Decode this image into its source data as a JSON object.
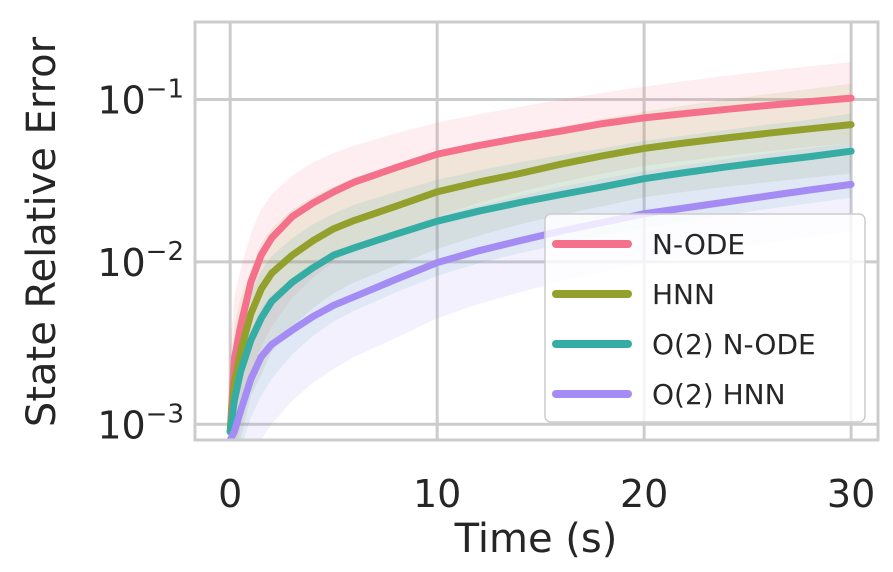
{
  "chart_data": {
    "type": "line",
    "title": "",
    "xlabel": "Time (s)",
    "ylabel": "State Relative Error",
    "xlim": [
      -1.7,
      31.3
    ],
    "ylim": [
      0.0008,
      0.3
    ],
    "yscale": "log",
    "grid": true,
    "legend_position": "lower-right",
    "x_ticks": [
      {
        "value": 0,
        "label": "0"
      },
      {
        "value": 10,
        "label": "10"
      },
      {
        "value": 20,
        "label": "20"
      },
      {
        "value": 30,
        "label": "30"
      }
    ],
    "y_ticks": [
      {
        "value": 0.001,
        "base": "10",
        "exp": "−3"
      },
      {
        "value": 0.01,
        "base": "10",
        "exp": "−2"
      },
      {
        "value": 0.1,
        "base": "10",
        "exp": "−1"
      }
    ],
    "x": [
      0,
      0.2,
      0.5,
      1,
      1.5,
      2,
      3,
      4,
      5,
      6,
      8,
      10,
      12,
      14,
      16,
      18,
      20,
      22,
      24,
      26,
      28,
      30
    ],
    "series": [
      {
        "name": "N-ODE",
        "color": "#f5708a",
        "values": [
          0.0009,
          0.0025,
          0.004,
          0.0075,
          0.011,
          0.014,
          0.019,
          0.023,
          0.027,
          0.031,
          0.038,
          0.046,
          0.052,
          0.058,
          0.064,
          0.071,
          0.077,
          0.082,
          0.087,
          0.092,
          0.097,
          0.102
        ],
        "lower": [
          0.0003,
          0.0005,
          0.001,
          0.002,
          0.003,
          0.004,
          0.006,
          0.008,
          0.01,
          0.012,
          0.015,
          0.019,
          0.023,
          0.027,
          0.031,
          0.035,
          0.039,
          0.042,
          0.045,
          0.048,
          0.051,
          0.054
        ],
        "upper": [
          0.003,
          0.006,
          0.009,
          0.015,
          0.021,
          0.026,
          0.034,
          0.041,
          0.047,
          0.052,
          0.062,
          0.072,
          0.081,
          0.09,
          0.1,
          0.11,
          0.12,
          0.13,
          0.14,
          0.15,
          0.16,
          0.17
        ]
      },
      {
        "name": "HNN",
        "color": "#93a02c",
        "values": [
          0.0009,
          0.0018,
          0.0028,
          0.0048,
          0.0068,
          0.0085,
          0.011,
          0.0135,
          0.016,
          0.018,
          0.022,
          0.027,
          0.031,
          0.035,
          0.04,
          0.045,
          0.05,
          0.054,
          0.058,
          0.062,
          0.066,
          0.07
        ],
        "lower": [
          0.0003,
          0.0005,
          0.0008,
          0.0015,
          0.002,
          0.0028,
          0.004,
          0.0052,
          0.0064,
          0.0075,
          0.0095,
          0.012,
          0.0145,
          0.017,
          0.0195,
          0.022,
          0.025,
          0.027,
          0.029,
          0.031,
          0.033,
          0.035
        ],
        "upper": [
          0.002,
          0.004,
          0.006,
          0.009,
          0.013,
          0.016,
          0.021,
          0.025,
          0.029,
          0.033,
          0.04,
          0.047,
          0.054,
          0.061,
          0.068,
          0.076,
          0.084,
          0.092,
          0.1,
          0.108,
          0.116,
          0.125
        ]
      },
      {
        "name": "O(2) N-ODE",
        "color": "#36ada4",
        "values": [
          0.0009,
          0.0014,
          0.0021,
          0.0033,
          0.0045,
          0.0057,
          0.0075,
          0.0092,
          0.011,
          0.0122,
          0.0148,
          0.0178,
          0.0205,
          0.0232,
          0.026,
          0.029,
          0.0325,
          0.0355,
          0.0385,
          0.0415,
          0.0445,
          0.048
        ],
        "lower": [
          0.0003,
          0.0005,
          0.0007,
          0.0011,
          0.0015,
          0.0019,
          0.0027,
          0.0035,
          0.0043,
          0.005,
          0.0065,
          0.0082,
          0.0098,
          0.0113,
          0.0129,
          0.0145,
          0.0162,
          0.0178,
          0.0195,
          0.0212,
          0.0229,
          0.0248
        ],
        "upper": [
          0.002,
          0.0032,
          0.0045,
          0.0065,
          0.0088,
          0.0108,
          0.014,
          0.017,
          0.0198,
          0.0225,
          0.027,
          0.032,
          0.0365,
          0.041,
          0.0455,
          0.05,
          0.0555,
          0.06,
          0.065,
          0.07,
          0.075,
          0.082
        ]
      },
      {
        "name": "O(2) HNN",
        "color": "#a48cf4",
        "values": [
          0.0008,
          0.0009,
          0.0012,
          0.0019,
          0.0026,
          0.0031,
          0.0038,
          0.0046,
          0.0054,
          0.0061,
          0.0078,
          0.0099,
          0.0117,
          0.0135,
          0.0155,
          0.0175,
          0.0198,
          0.0215,
          0.0234,
          0.0255,
          0.0277,
          0.03
        ],
        "lower": [
          0.0003,
          0.0003,
          0.0004,
          0.0006,
          0.0008,
          0.001,
          0.0014,
          0.0018,
          0.0022,
          0.0026,
          0.0034,
          0.0045,
          0.0055,
          0.0065,
          0.0076,
          0.0087,
          0.0098,
          0.0109,
          0.012,
          0.0131,
          0.0142,
          0.0154
        ],
        "upper": [
          0.0012,
          0.0018,
          0.0025,
          0.0038,
          0.0052,
          0.0063,
          0.0078,
          0.0095,
          0.011,
          0.0125,
          0.0155,
          0.019,
          0.0222,
          0.0255,
          0.029,
          0.0325,
          0.0362,
          0.0395,
          0.043,
          0.0465,
          0.05,
          0.054
        ]
      }
    ]
  }
}
